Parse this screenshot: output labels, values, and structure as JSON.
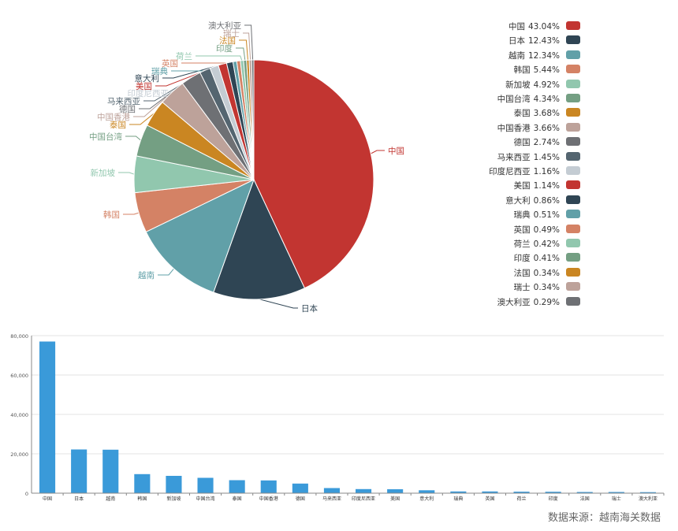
{
  "chart_data": [
    {
      "type": "pie",
      "labels": [
        "中国",
        "日本",
        "越南",
        "韩国",
        "新加坡",
        "中国台湾",
        "泰国",
        "中国香港",
        "德国",
        "马来西亚",
        "印度尼西亚",
        "美国",
        "意大利",
        "瑞典",
        "英国",
        "荷兰",
        "印度",
        "法国",
        "瑞士",
        "澳大利亚"
      ],
      "values": [
        43.04,
        12.43,
        12.34,
        5.44,
        4.92,
        4.34,
        3.68,
        3.66,
        2.74,
        1.45,
        1.16,
        1.14,
        0.86,
        0.51,
        0.49,
        0.42,
        0.41,
        0.34,
        0.34,
        0.29
      ],
      "value_suffix": "%",
      "colors": [
        "#c23531",
        "#2f4554",
        "#61a0a8",
        "#d48265",
        "#91c7ae",
        "#749f83",
        "#ca8622",
        "#bda29a",
        "#6e7074",
        "#546570",
        "#c4ccd3",
        "#c23531",
        "#2f4554",
        "#61a0a8",
        "#d48265",
        "#91c7ae",
        "#749f83",
        "#ca8622",
        "#bda29a",
        "#6e7074"
      ],
      "legend_position": "right"
    },
    {
      "type": "bar",
      "categories": [
        "中国",
        "日本",
        "越南",
        "韩国",
        "新加坡",
        "中国台湾",
        "泰国",
        "中国香港",
        "德国",
        "马来西亚",
        "印度尼西亚",
        "美国",
        "意大利",
        "瑞典",
        "英国",
        "荷兰",
        "印度",
        "法国",
        "瑞士",
        "澳大利亚"
      ],
      "values": [
        77000,
        22200,
        22100,
        9700,
        8800,
        7800,
        6600,
        6500,
        4900,
        2600,
        2100,
        2000,
        1500,
        900,
        870,
        750,
        730,
        600,
        600,
        520
      ],
      "ylim": [
        0,
        80000
      ],
      "yticks": [
        "0",
        "20,000",
        "40,000",
        "60,000",
        "80,000"
      ],
      "ytick_values": [
        0,
        20000,
        40000,
        60000,
        80000
      ],
      "bar_color": "#3a9ad9",
      "grid": true
    }
  ],
  "source_note": "数据来源：越南海关数据"
}
